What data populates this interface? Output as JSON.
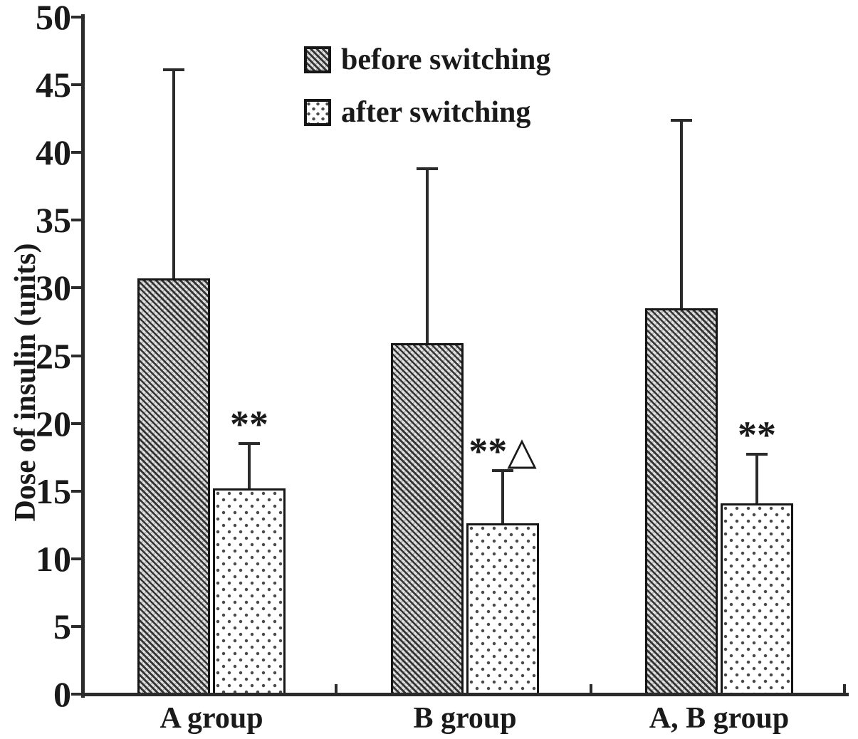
{
  "figure": {
    "background": "#ffffff",
    "ink_color": "#1a1a1a"
  },
  "chart_data": {
    "type": "bar",
    "title": "",
    "xlabel": "",
    "ylabel": "Dose of insulin (units)",
    "ylim": [
      0,
      50
    ],
    "yticks": [
      0,
      5,
      10,
      15,
      20,
      25,
      30,
      35,
      40,
      45,
      50
    ],
    "categories": [
      "A group",
      "B group",
      "A, B group"
    ],
    "series": [
      {
        "name": "before switching",
        "pattern": "diagonal-hatch",
        "values": [
          30.7,
          25.9,
          28.5
        ],
        "error_bar_top": [
          46.1,
          38.8,
          42.4
        ]
      },
      {
        "name": "after switching",
        "pattern": "dots",
        "values": [
          15.2,
          12.6,
          14.1
        ],
        "error_bar_top": [
          18.5,
          16.5,
          17.7
        ]
      }
    ],
    "annotations": [
      {
        "text": "**",
        "group": "A group",
        "series": "after switching"
      },
      {
        "text": "**△",
        "group": "B group",
        "series": "after switching"
      },
      {
        "text": "**",
        "group": "A, B group",
        "series": "after switching"
      }
    ],
    "legend_position": "top-center-inside",
    "grid": false,
    "error_bars": "upper-only"
  }
}
